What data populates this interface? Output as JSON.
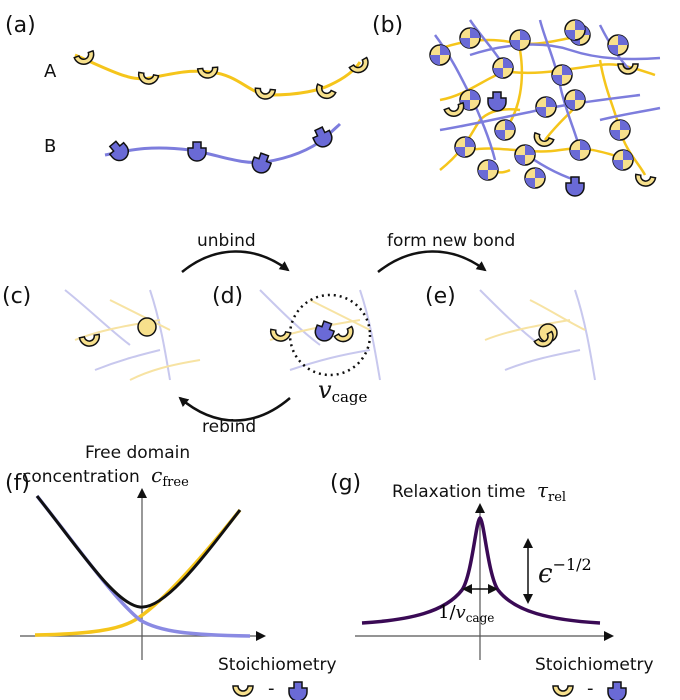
{
  "panels": {
    "a": "(a)",
    "b": "(b)",
    "c": "(c)",
    "d": "(d)",
    "e": "(e)",
    "f": "(f)",
    "g": "(g)"
  },
  "polymer_labels": {
    "a": "A",
    "b": "B"
  },
  "arrows": {
    "unbind": "unbind",
    "form_new_bond": "form new bond",
    "rebind": "rebind"
  },
  "cage": {
    "symbol": "v",
    "subscript": "cage"
  },
  "panel_f": {
    "ylabel_line1": "Free domain",
    "ylabel_line2": "concentration",
    "ysymbol": "c",
    "ysubscript": "free",
    "xlabel": "Stoichiometry",
    "minus": "-"
  },
  "panel_g": {
    "ylabel": "Relaxation time",
    "ysymbol": "τ",
    "ysubscript": "rel",
    "height_symbol": "ϵ",
    "height_exponent": "−1/2",
    "width_numerator": "1/",
    "width_symbol": "v",
    "width_subscript": "cage",
    "xlabel": "Stoichiometry",
    "minus": "-"
  },
  "colors": {
    "polymer_a": "#f5c51b",
    "domain_a_fill": "#f7e08c",
    "polymer_b": "#7d7ddd",
    "domain_b_fill": "#6a6ad6",
    "curve_total": "#111111",
    "relaxation": "#3a0a55"
  }
}
